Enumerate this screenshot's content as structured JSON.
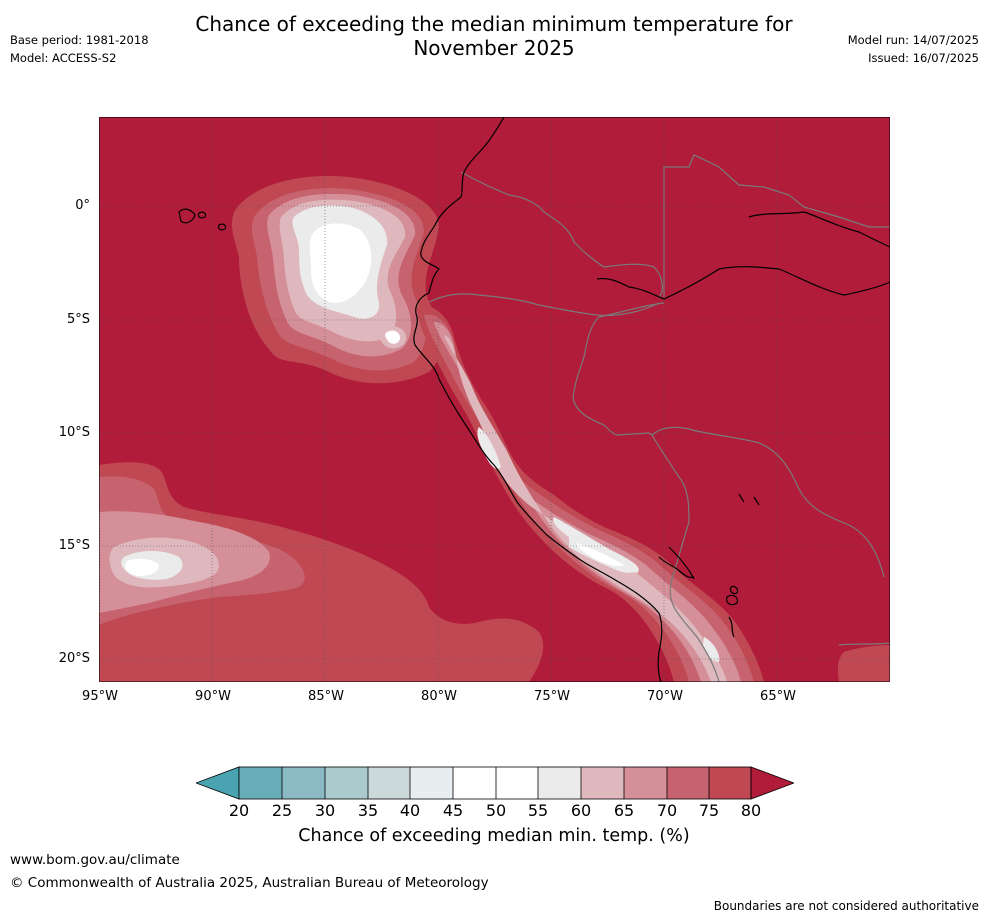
{
  "title": "Chance of exceeding the median minimum temperature for November 2025",
  "title_lines": [
    "Chance of exceeding the median minimum temperature for",
    "November 2025"
  ],
  "base_period": "Base period: 1981-2018",
  "model": "Model: ACCESS-S2",
  "model_run": "Model run: 14/07/2025",
  "issued": "Issued: 16/07/2025",
  "lat_labels": [
    "0°",
    "5°S",
    "10°S",
    "15°S",
    "20°S"
  ],
  "lon_labels": [
    "95°W",
    "90°W",
    "85°W",
    "80°W",
    "75°W",
    "70°W",
    "65°W"
  ],
  "colorbar": {
    "title": "Chance of exceeding median min. temp. (%)",
    "ticks": [
      "20",
      "25",
      "30",
      "35",
      "40",
      "45",
      "50",
      "55",
      "60",
      "65",
      "70",
      "75",
      "80"
    ],
    "colors": [
      "#69adb8",
      "#8cbac4",
      "#abcacd",
      "#cbd9da",
      "#e8eef0",
      "#ffffff",
      "#ffffff",
      "#ebebeb",
      "#dfb8bd",
      "#d48f98",
      "#c7636f",
      "#bf4853",
      "#b01c39"
    ],
    "under_color": "#4aa3b0",
    "over_color": "#b01c39"
  },
  "map_colors": {
    "c80": "#b01c39",
    "c75": "#bf4853",
    "c70": "#c7636f",
    "c65": "#d48f98",
    "c60": "#dfb8bd",
    "c55": "#ebebeb",
    "c50": "#ffffff",
    "border": "#7a7a7a",
    "coast": "#000000"
  },
  "website": "www.bom.gov.au/climate",
  "copyright": "© Commonwealth of Australia 2025, Australian Bureau of Meteorology",
  "disclaimer": "Boundaries are not considered authoritative"
}
